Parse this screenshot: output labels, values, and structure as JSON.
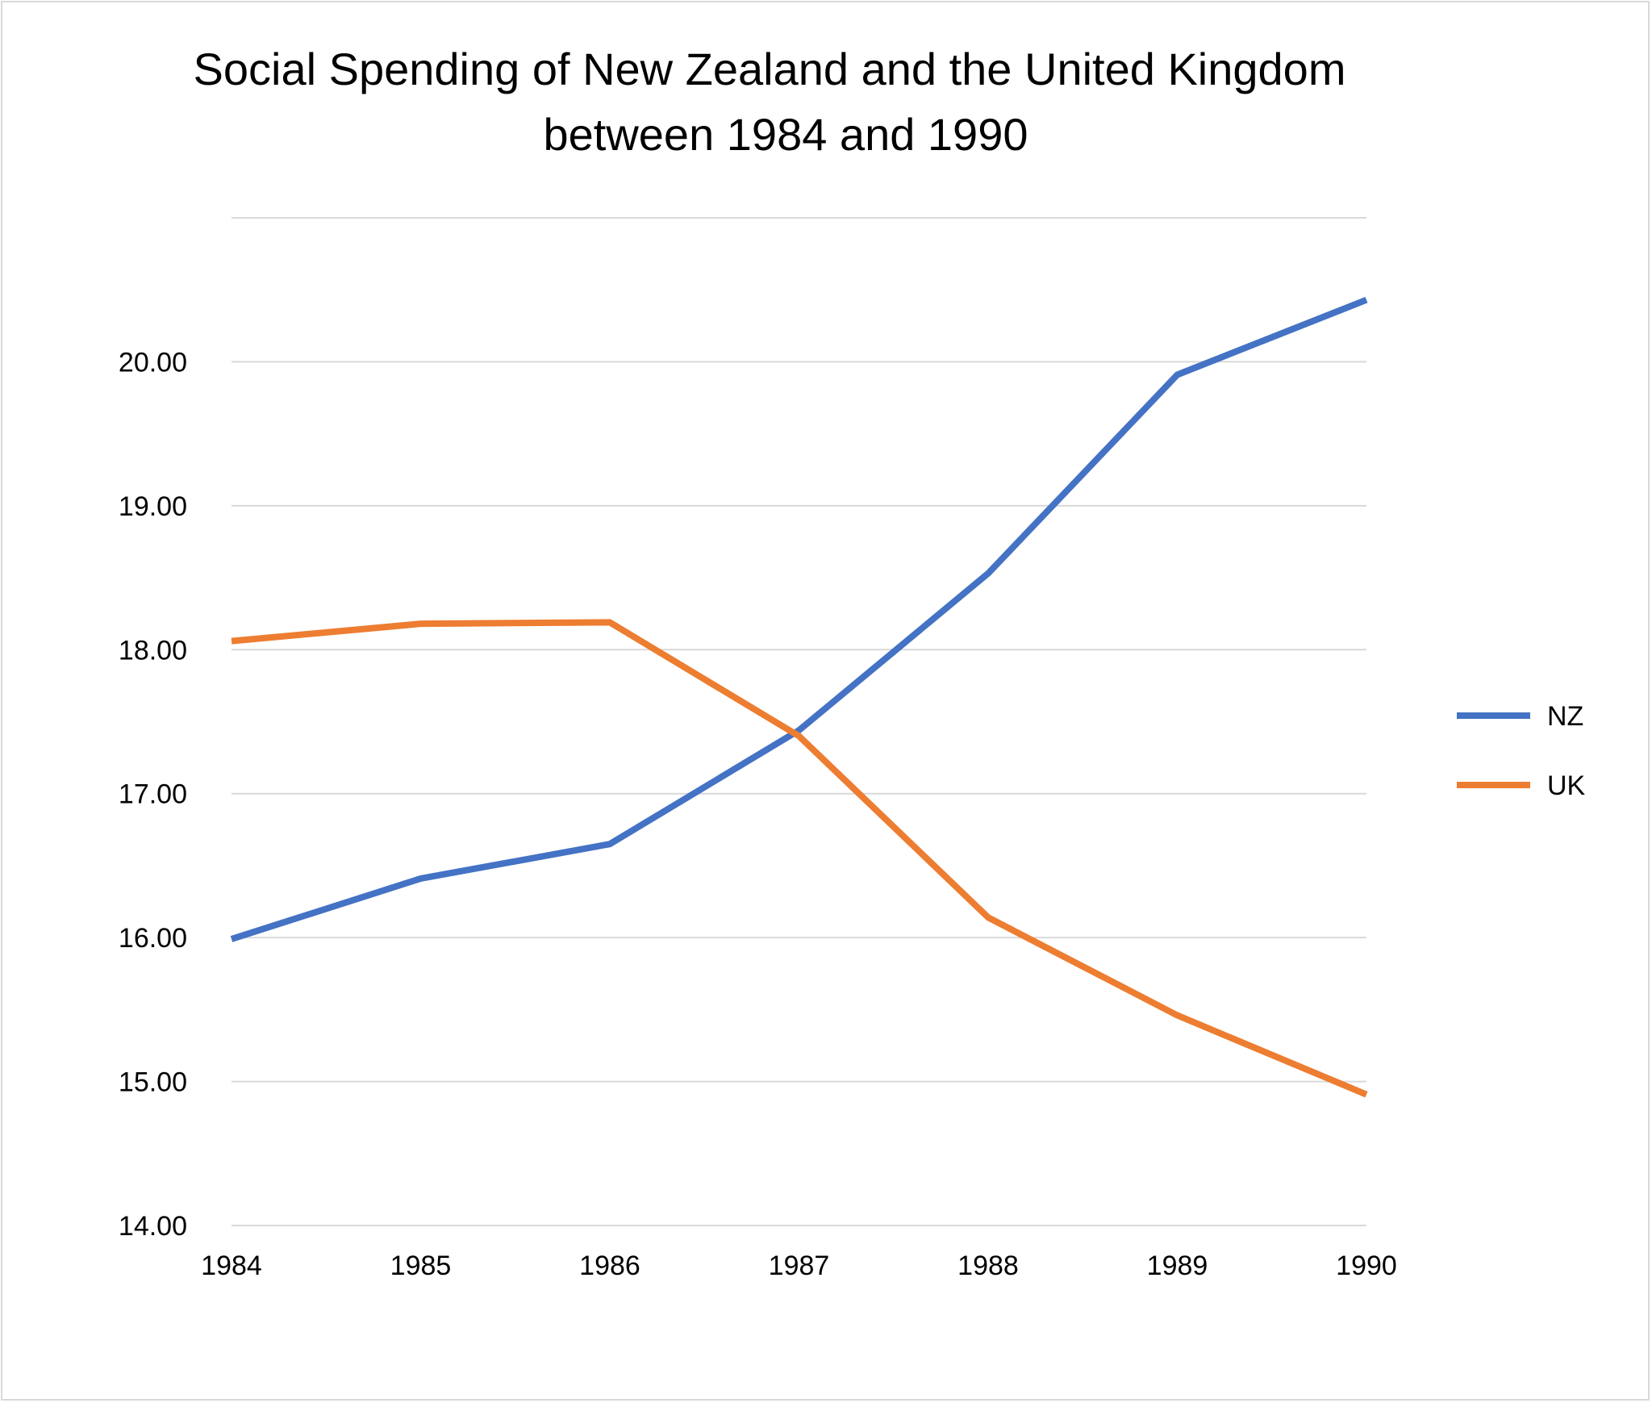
{
  "chart_data": {
    "type": "line",
    "title": [
      "Social Spending of New Zealand and the United Kingdom",
      "between 1984 and 1990"
    ],
    "xlabel": "",
    "ylabel": "",
    "categories": [
      "1984",
      "1985",
      "1986",
      "1987",
      "1988",
      "1989",
      "1990"
    ],
    "ylim": [
      14,
      21
    ],
    "yticks": [
      14,
      15,
      16,
      17,
      18,
      19,
      20
    ],
    "ytick_labels": [
      "14.00",
      "15.00",
      "16.00",
      "17.00",
      "18.00",
      "19.00",
      "20.00"
    ],
    "grid": true,
    "legend_position": "right",
    "series": [
      {
        "name": "NZ",
        "color": "#4472c4",
        "values": [
          15.99,
          16.41,
          16.65,
          17.44,
          18.53,
          19.91,
          20.43
        ]
      },
      {
        "name": "UK",
        "color": "#ed7d31",
        "values": [
          18.06,
          18.18,
          18.19,
          17.4,
          16.14,
          15.46,
          14.91
        ]
      }
    ]
  }
}
